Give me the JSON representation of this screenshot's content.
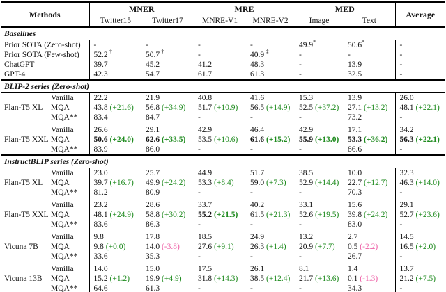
{
  "colors": {
    "positive": "#1f8b1f",
    "negative": "#ee5fa6",
    "rule": "#000000"
  },
  "header": {
    "methods": "Methods",
    "average": "Average",
    "groups": [
      {
        "label": "MNER",
        "cols": [
          "Twitter15",
          "Twitter17"
        ]
      },
      {
        "label": "MRE",
        "cols": [
          "MNRE-V1",
          "MNRE-V2"
        ]
      },
      {
        "label": "MED",
        "cols": [
          "Image",
          "Text"
        ]
      }
    ]
  },
  "sections": [
    {
      "title": "Baselines",
      "rows": [
        {
          "label": "Prior SOTA (Zero-shot)",
          "cells": [
            "-",
            "-",
            "-",
            "-",
            {
              "v": "49.9",
              "s": "*"
            },
            {
              "v": "50.6",
              "s": "*"
            },
            "-"
          ]
        },
        {
          "label": "Prior SOTA (Few-shot)",
          "cells": [
            {
              "v": "52.2",
              "s": "†",
              "sp": true
            },
            {
              "v": "50.7",
              "s": "†",
              "sp": true
            },
            "-",
            {
              "v": "40.9",
              "s": "‡",
              "sp": true
            },
            "-",
            "-",
            "-"
          ]
        },
        {
          "label": "ChatGPT",
          "cells": [
            "39.7",
            "45.2",
            "41.2",
            "48.3",
            "-",
            "13.9",
            "-"
          ]
        },
        {
          "label": "GPT-4",
          "cells": [
            "42.3",
            "54.7",
            "61.7",
            "61.3",
            "-",
            "32.5",
            "-"
          ]
        }
      ]
    },
    {
      "title": "BLIP-2 series (Zero-shot)",
      "groups": [
        {
          "model": "Flan-T5 XL",
          "variants": [
            {
              "label": "Vanilla",
              "cells": [
                "22.2",
                "21.9",
                "40.8",
                "41.6",
                "15.3",
                "13.9",
                "26.0"
              ]
            },
            {
              "label": "MQA",
              "cells": [
                {
                  "v": "43.8",
                  "d": "+21.6"
                },
                {
                  "v": "56.8",
                  "d": "+34.9"
                },
                {
                  "v": "51.7",
                  "d": "+10.9"
                },
                {
                  "v": "56.5",
                  "d": "+14.9"
                },
                {
                  "v": "52.5",
                  "d": "+37.2"
                },
                {
                  "v": "27.1",
                  "d": "+13.2"
                },
                {
                  "v": "48.1",
                  "d": "+22.1"
                }
              ]
            },
            {
              "label": "MQA**",
              "cells": [
                "83.4",
                "84.7",
                "-",
                "-",
                "-",
                "73.2",
                "-"
              ]
            }
          ]
        },
        {
          "model": "Flan-T5 XXL",
          "variants": [
            {
              "label": "Vanilla",
              "cells": [
                "26.6",
                "29.1",
                "42.9",
                "46.4",
                "42.9",
                "17.1",
                "34.2"
              ]
            },
            {
              "label": "MQA",
              "cells": [
                {
                  "v": "50.6",
                  "d": "+24.0",
                  "b": true
                },
                {
                  "v": "62.6",
                  "d": "+33.5",
                  "b": true
                },
                {
                  "v": "53.5",
                  "d": "+10.6"
                },
                {
                  "v": "61.6",
                  "d": "+15.2",
                  "b": true
                },
                {
                  "v": "55.9",
                  "d": "+13.0",
                  "b": true
                },
                {
                  "v": "53.3",
                  "d": "+36.2",
                  "b": true
                },
                {
                  "v": "56.3",
                  "d": "+22.1",
                  "b": true
                }
              ]
            },
            {
              "label": "MQA**",
              "cells": [
                "83.9",
                "86.0",
                "-",
                "-",
                "-",
                "86.6",
                "-"
              ]
            }
          ]
        }
      ]
    },
    {
      "title": "InstructBLIP series (Zero-shot)",
      "groups": [
        {
          "model": "Flan-T5 XL",
          "variants": [
            {
              "label": "Vanilla",
              "cells": [
                "23.0",
                "25.7",
                "44.9",
                "51.7",
                "38.5",
                "10.0",
                "32.3"
              ]
            },
            {
              "label": "MQA",
              "cells": [
                {
                  "v": "39.7",
                  "d": "+16.7"
                },
                {
                  "v": "49.9",
                  "d": "+24.2"
                },
                {
                  "v": "53.3",
                  "d": "+8.4"
                },
                {
                  "v": "59.0",
                  "d": "+7.3"
                },
                {
                  "v": "52.9",
                  "d": "+14.4"
                },
                {
                  "v": "22.7",
                  "d": "+12.7"
                },
                {
                  "v": "46.3",
                  "d": "+14.0"
                }
              ]
            },
            {
              "label": "MQA**",
              "cells": [
                "81.2",
                "80.9",
                "-",
                "-",
                "-",
                "70.3",
                "-"
              ]
            }
          ]
        },
        {
          "model": "Flan-T5 XXL",
          "variants": [
            {
              "label": "Vanilla",
              "cells": [
                "23.2",
                "28.6",
                "33.7",
                "40.2",
                "33.1",
                "15.6",
                "29.1"
              ]
            },
            {
              "label": "MQA",
              "cells": [
                {
                  "v": "48.1",
                  "d": "+24.9"
                },
                {
                  "v": "58.8",
                  "d": "+30.2"
                },
                {
                  "v": "55.2",
                  "d": "+21.5",
                  "b": true
                },
                {
                  "v": "61.5",
                  "d": "+21.3"
                },
                {
                  "v": "52.6",
                  "d": "+19.5"
                },
                {
                  "v": "39.8",
                  "d": "+24.2"
                },
                {
                  "v": "52.7",
                  "d": "+23.6"
                }
              ]
            },
            {
              "label": "MQA**",
              "cells": [
                "83.6",
                "86.3",
                "-",
                "-",
                "-",
                "83.0",
                "-"
              ]
            }
          ]
        },
        {
          "model": "Vicuna 7B",
          "variants": [
            {
              "label": "Vanilla",
              "cells": [
                "9.8",
                "17.8",
                "18.5",
                "24.9",
                "13.2",
                "2.7",
                "14.5"
              ]
            },
            {
              "label": "MQA",
              "cells": [
                {
                  "v": "9.8",
                  "d": "+0.0"
                },
                {
                  "v": "14.0",
                  "d": "-3.8"
                },
                {
                  "v": "27.6",
                  "d": "+9.1"
                },
                {
                  "v": "26.3",
                  "d": "+1.4"
                },
                {
                  "v": "20.9",
                  "d": "+7.7"
                },
                {
                  "v": "0.5",
                  "d": "-2.2"
                },
                {
                  "v": "16.5",
                  "d": "+2.0"
                }
              ]
            },
            {
              "label": "MQA**",
              "cells": [
                "33.6",
                "35.3",
                "-",
                "-",
                "-",
                "26.7",
                "-"
              ]
            }
          ]
        },
        {
          "model": "Vicuna 13B",
          "variants": [
            {
              "label": "Vanilla",
              "cells": [
                "14.0",
                "15.0",
                "17.5",
                "26.1",
                "8.1",
                "1.4",
                "13.7"
              ]
            },
            {
              "label": "MQA",
              "cells": [
                {
                  "v": "15.2",
                  "d": "+1.2"
                },
                {
                  "v": "19.9",
                  "d": "+4.9"
                },
                {
                  "v": "31.8",
                  "d": "+14.3"
                },
                {
                  "v": "38.5",
                  "d": "+12.4"
                },
                {
                  "v": "21.7",
                  "d": "+13.6"
                },
                {
                  "v": "0.1",
                  "d": "-1.3"
                },
                {
                  "v": "21.2",
                  "d": "+7.5"
                }
              ]
            },
            {
              "label": "MQA**",
              "cells": [
                "64.6",
                "61.3",
                "-",
                "-",
                "-",
                "34.3",
                "-"
              ]
            }
          ]
        }
      ]
    }
  ]
}
